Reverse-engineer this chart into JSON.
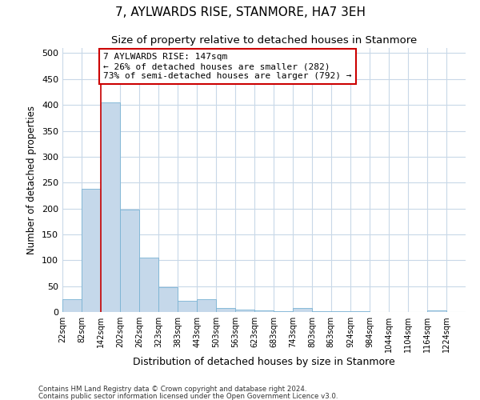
{
  "title": "7, AYLWARDS RISE, STANMORE, HA7 3EH",
  "subtitle": "Size of property relative to detached houses in Stanmore",
  "xlabel": "Distribution of detached houses by size in Stanmore",
  "ylabel": "Number of detached properties",
  "footnote1": "Contains HM Land Registry data © Crown copyright and database right 2024.",
  "footnote2": "Contains public sector information licensed under the Open Government Licence v3.0.",
  "bar_left_edges": [
    22,
    82,
    142,
    202,
    262,
    323,
    383,
    443,
    503,
    563,
    623,
    683,
    743,
    803,
    863,
    924,
    984,
    1044,
    1104,
    1164
  ],
  "bar_widths": [
    60,
    60,
    60,
    60,
    61,
    60,
    60,
    60,
    60,
    60,
    60,
    60,
    60,
    60,
    61,
    60,
    60,
    60,
    60,
    60
  ],
  "bar_heights": [
    25,
    238,
    405,
    198,
    105,
    48,
    22,
    25,
    8,
    5,
    3,
    2,
    8,
    2,
    2,
    1,
    0,
    0,
    0,
    3
  ],
  "bar_color": "#c5d8ea",
  "bar_edgecolor": "#7ab3d4",
  "property_line_x": 142,
  "property_line_color": "#cc0000",
  "annotation_text": "7 AYLWARDS RISE: 147sqm\n← 26% of detached houses are smaller (282)\n73% of semi-detached houses are larger (792) →",
  "annotation_box_color": "#cc0000",
  "annotation_fontsize": 8.0,
  "ylim": [
    0,
    510
  ],
  "xlim": [
    22,
    1284
  ],
  "xtick_positions": [
    22,
    82,
    142,
    202,
    262,
    323,
    383,
    443,
    503,
    563,
    623,
    683,
    743,
    803,
    863,
    924,
    984,
    1044,
    1104,
    1164,
    1224
  ],
  "xtick_labels": [
    "22sqm",
    "82sqm",
    "142sqm",
    "202sqm",
    "262sqm",
    "323sqm",
    "383sqm",
    "443sqm",
    "503sqm",
    "563sqm",
    "623sqm",
    "683sqm",
    "743sqm",
    "803sqm",
    "863sqm",
    "924sqm",
    "984sqm",
    "1044sqm",
    "1104sqm",
    "1164sqm",
    "1224sqm"
  ],
  "ytick_positions": [
    0,
    50,
    100,
    150,
    200,
    250,
    300,
    350,
    400,
    450,
    500
  ],
  "background_color": "#ffffff",
  "grid_color": "#c8d8e8",
  "title_fontsize": 11,
  "subtitle_fontsize": 9.5,
  "ylabel_fontsize": 8.5,
  "xlabel_fontsize": 9,
  "ytick_fontsize": 8,
  "xtick_fontsize": 7
}
